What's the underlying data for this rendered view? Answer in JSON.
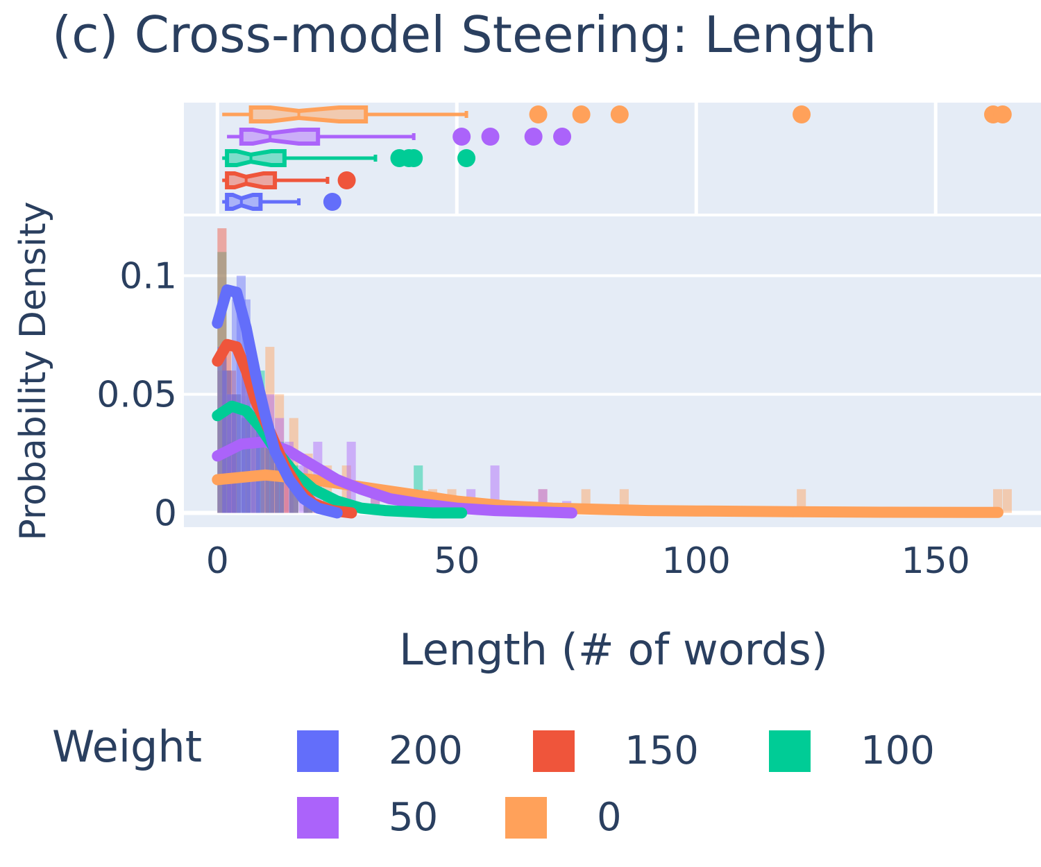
{
  "chart_data": {
    "type": "histogram",
    "title": "(c) Cross-model Steering: Length",
    "xlabel": "Length (# of words)",
    "ylabel": "Probability Density",
    "xlim": [
      -7,
      172
    ],
    "ylim": [
      -0.006,
      0.125
    ],
    "x_ticks": [
      0,
      50,
      100,
      150
    ],
    "y_ticks": [
      0,
      0.05,
      0.1
    ],
    "y_tick_labels": [
      "0",
      "0.05",
      "0.1"
    ],
    "marginal": "box (notched) with outlier points",
    "legend": {
      "title": "Weight",
      "placement": "bottom",
      "items": [
        {
          "label": "200",
          "color": "#636efa"
        },
        {
          "label": "150",
          "color": "#ef553b"
        },
        {
          "label": "100",
          "color": "#00cc96"
        },
        {
          "label": "50",
          "color": "#ab63fa"
        },
        {
          "label": "0",
          "color": "#ffa15a"
        }
      ]
    },
    "series": [
      {
        "name": "200",
        "color": "#636efa",
        "hist": [
          [
            0,
            0.07
          ],
          [
            1,
            0.06
          ],
          [
            2,
            0.05
          ],
          [
            3,
            0.09
          ],
          [
            4,
            0.1
          ],
          [
            5,
            0.09
          ],
          [
            6,
            0.07
          ],
          [
            7,
            0.05
          ],
          [
            8,
            0.04
          ],
          [
            10,
            0.03
          ],
          [
            12,
            0.02
          ],
          [
            15,
            0.01
          ],
          [
            18,
            0.005
          ]
        ],
        "kde": [
          [
            0,
            0.08
          ],
          [
            2,
            0.094
          ],
          [
            4,
            0.093
          ],
          [
            6,
            0.078
          ],
          [
            8,
            0.058
          ],
          [
            10,
            0.041
          ],
          [
            12,
            0.026
          ],
          [
            15,
            0.014
          ],
          [
            18,
            0.006
          ],
          [
            21,
            0.002
          ],
          [
            25,
            0.0
          ]
        ],
        "box": {
          "min": 1,
          "q1": 2,
          "median": 5,
          "q3": 9,
          "max": 17,
          "outliers": [
            24
          ]
        }
      },
      {
        "name": "150",
        "color": "#ef553b",
        "hist": [
          [
            0,
            0.12
          ],
          [
            1,
            0.07
          ],
          [
            2,
            0.06
          ],
          [
            3,
            0.05
          ],
          [
            5,
            0.06
          ],
          [
            7,
            0.04
          ],
          [
            9,
            0.035
          ],
          [
            11,
            0.03
          ],
          [
            13,
            0.02
          ],
          [
            15,
            0.015
          ],
          [
            18,
            0.01
          ],
          [
            20,
            0.005
          ],
          [
            26,
            0.005
          ]
        ],
        "kde": [
          [
            0,
            0.064
          ],
          [
            2,
            0.071
          ],
          [
            4,
            0.07
          ],
          [
            6,
            0.06
          ],
          [
            8,
            0.047
          ],
          [
            11,
            0.034
          ],
          [
            14,
            0.02
          ],
          [
            17,
            0.01
          ],
          [
            20,
            0.004
          ],
          [
            24,
            0.001
          ],
          [
            28,
            0.0
          ]
        ],
        "box": {
          "min": 1,
          "q1": 2,
          "median": 6,
          "q3": 12,
          "max": 23,
          "outliers": [
            27
          ]
        }
      },
      {
        "name": "100",
        "color": "#00cc96",
        "hist": [
          [
            0,
            0.11
          ],
          [
            1,
            0.06
          ],
          [
            3,
            0.05
          ],
          [
            5,
            0.04
          ],
          [
            8,
            0.06
          ],
          [
            10,
            0.035
          ],
          [
            12,
            0.03
          ],
          [
            15,
            0.02
          ],
          [
            18,
            0.01
          ],
          [
            22,
            0.008
          ],
          [
            27,
            0.005
          ],
          [
            41,
            0.02
          ],
          [
            50,
            0.003
          ]
        ],
        "kde": [
          [
            0,
            0.041
          ],
          [
            3,
            0.045
          ],
          [
            6,
            0.043
          ],
          [
            9,
            0.036
          ],
          [
            12,
            0.027
          ],
          [
            16,
            0.017
          ],
          [
            20,
            0.01
          ],
          [
            25,
            0.005
          ],
          [
            30,
            0.002
          ],
          [
            35,
            0.001
          ],
          [
            45,
            0.0
          ],
          [
            51,
            0.0
          ]
        ],
        "box": {
          "min": 1,
          "q1": 2,
          "median": 7,
          "q3": 14,
          "max": 33,
          "outliers": [
            38,
            40,
            41,
            52
          ]
        }
      },
      {
        "name": "50",
        "color": "#ab63fa",
        "hist": [
          [
            2,
            0.03
          ],
          [
            5,
            0.04
          ],
          [
            8,
            0.035
          ],
          [
            10,
            0.05
          ],
          [
            12,
            0.04
          ],
          [
            14,
            0.03
          ],
          [
            17,
            0.02
          ],
          [
            20,
            0.03
          ],
          [
            27,
            0.03
          ],
          [
            32,
            0.01
          ],
          [
            40,
            0.01
          ],
          [
            52,
            0.01
          ],
          [
            57,
            0.02
          ],
          [
            67,
            0.01
          ],
          [
            72,
            0.005
          ]
        ],
        "kde": [
          [
            0,
            0.024
          ],
          [
            5,
            0.029
          ],
          [
            10,
            0.03
          ],
          [
            15,
            0.026
          ],
          [
            20,
            0.02
          ],
          [
            25,
            0.014
          ],
          [
            30,
            0.01
          ],
          [
            36,
            0.006
          ],
          [
            42,
            0.004
          ],
          [
            50,
            0.002
          ],
          [
            58,
            0.001
          ],
          [
            66,
            0.0005
          ],
          [
            74,
            0.0
          ]
        ],
        "box": {
          "min": 2,
          "q1": 5,
          "median": 11,
          "q3": 21,
          "max": 41,
          "outliers": [
            51,
            57,
            66,
            72
          ]
        }
      },
      {
        "name": "0",
        "color": "#ffa15a",
        "hist": [
          [
            0,
            0.06
          ],
          [
            3,
            0.03
          ],
          [
            6,
            0.04
          ],
          [
            10,
            0.07
          ],
          [
            12,
            0.05
          ],
          [
            15,
            0.04
          ],
          [
            18,
            0.025
          ],
          [
            22,
            0.02
          ],
          [
            26,
            0.02
          ],
          [
            32,
            0.01
          ],
          [
            38,
            0.01
          ],
          [
            44,
            0.01
          ],
          [
            48,
            0.01
          ],
          [
            67,
            0.01
          ],
          [
            76,
            0.01
          ],
          [
            84,
            0.01
          ],
          [
            121,
            0.01
          ],
          [
            162,
            0.01
          ],
          [
            164,
            0.01
          ]
        ],
        "kde": [
          [
            0,
            0.014
          ],
          [
            5,
            0.015
          ],
          [
            10,
            0.016
          ],
          [
            15,
            0.015
          ],
          [
            20,
            0.014
          ],
          [
            30,
            0.011
          ],
          [
            40,
            0.008
          ],
          [
            50,
            0.005
          ],
          [
            60,
            0.003
          ],
          [
            70,
            0.002
          ],
          [
            80,
            0.0015
          ],
          [
            90,
            0.001
          ],
          [
            100,
            0.0008
          ],
          [
            120,
            0.0005
          ],
          [
            140,
            0.0003
          ],
          [
            163,
            0.0002
          ]
        ],
        "box": {
          "min": 1,
          "q1": 7,
          "median": 17,
          "q3": 31,
          "max": 52,
          "outliers": [
            67,
            76,
            84,
            122,
            162,
            164
          ]
        }
      }
    ]
  }
}
